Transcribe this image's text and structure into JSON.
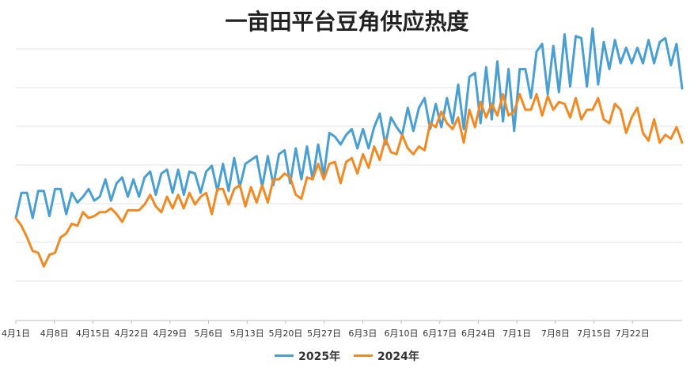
{
  "chart_data": {
    "type": "line",
    "title": "一亩田平台豆角供应热度",
    "xlabel": "",
    "ylabel": "",
    "ylim": [
      0,
      14
    ],
    "grid": true,
    "y_axis_labels_shown": false,
    "legend_position": "bottom",
    "x_tick_labels": [
      "4月1日",
      "4月8日",
      "4月15日",
      "4月22日",
      "4月29日",
      "5月6日",
      "5月13日",
      "5月20日",
      "5月27日",
      "6月3日",
      "6月10日",
      "6月17日",
      "6月24日",
      "7月1日",
      "7月8日",
      "7月15日",
      "7月22日"
    ],
    "series": [
      {
        "name": "2025年",
        "color": "#4A9FD0",
        "values": [
          5.3,
          6.6,
          6.6,
          5.3,
          6.7,
          6.7,
          5.4,
          6.8,
          6.8,
          5.5,
          6.6,
          6.1,
          6.4,
          6.8,
          6.2,
          6.4,
          7.3,
          6.2,
          7.1,
          7.4,
          6.4,
          7.3,
          6.4,
          7.4,
          7.7,
          6.5,
          7.6,
          7.8,
          6.6,
          7.8,
          6.5,
          7.7,
          7.6,
          6.6,
          7.7,
          8.0,
          6.7,
          8.1,
          6.7,
          8.4,
          6.9,
          8.1,
          8.3,
          8.5,
          6.9,
          8.5,
          7.0,
          8.6,
          8.8,
          7.1,
          8.9,
          7.3,
          9.0,
          7.3,
          9.1,
          7.5,
          9.7,
          9.5,
          9.1,
          9.6,
          9.9,
          8.9,
          9.9,
          8.9,
          10.0,
          10.7,
          9.1,
          10.5,
          10.0,
          9.6,
          11.0,
          9.8,
          11.0,
          11.5,
          9.9,
          11.2,
          10.0,
          11.5,
          10.2,
          12.2,
          9.9,
          12.6,
          12.8,
          10.2,
          13.1,
          10.4,
          13.4,
          10.3,
          13.0,
          9.8,
          13.0,
          13.0,
          11.5,
          13.9,
          14.3,
          11.7,
          14.2,
          11.8,
          14.8,
          12.1,
          14.7,
          14.6,
          12.1,
          15.1,
          12.2,
          14.4,
          13.0,
          14.5,
          13.3,
          14.1,
          13.3,
          14.1,
          13.3,
          14.5,
          13.3,
          14.4,
          14.6,
          13.2,
          14.3,
          12.0
        ],
        "series_note": ""
      },
      {
        "name": "2024年",
        "color": "#F08A24",
        "values": [
          5.3,
          4.9,
          4.3,
          3.6,
          3.5,
          2.8,
          3.4,
          3.5,
          4.3,
          4.5,
          5.0,
          4.9,
          5.6,
          5.3,
          5.4,
          5.6,
          5.6,
          5.8,
          5.5,
          5.1,
          5.7,
          5.7,
          5.7,
          6.0,
          6.5,
          5.9,
          5.6,
          6.4,
          5.8,
          6.5,
          5.8,
          6.6,
          6.0,
          6.4,
          6.6,
          5.5,
          6.8,
          6.8,
          6.0,
          6.8,
          7.0,
          5.9,
          6.9,
          6.1,
          7.0,
          6.1,
          7.3,
          7.3,
          7.6,
          7.4,
          6.5,
          6.3,
          7.4,
          7.3,
          8.1,
          7.3,
          8.1,
          8.2,
          7.1,
          8.2,
          8.4,
          7.6,
          8.6,
          7.9,
          9.0,
          8.3,
          9.4,
          8.7,
          8.6,
          9.6,
          8.9,
          8.6,
          9.0,
          8.8,
          10.2,
          10.0,
          10.8,
          10.2,
          9.9,
          10.5,
          9.2,
          10.9,
          10.0,
          11.3,
          10.5,
          11.2,
          10.6,
          11.7,
          10.6,
          10.8,
          11.7,
          10.9,
          10.9,
          11.7,
          10.6,
          11.6,
          10.9,
          11.3,
          11.2,
          10.5,
          11.5,
          10.4,
          10.9,
          10.9,
          11.5,
          10.4,
          10.2,
          11.2,
          10.9,
          9.7,
          10.5,
          11.0,
          9.7,
          9.3,
          10.4,
          9.2,
          9.6,
          9.4,
          10.0,
          9.2
        ]
      }
    ]
  },
  "legend": {
    "items": [
      {
        "label": "2025年",
        "color": "#4A9FD0"
      },
      {
        "label": "2024年",
        "color": "#F08A24"
      }
    ]
  }
}
